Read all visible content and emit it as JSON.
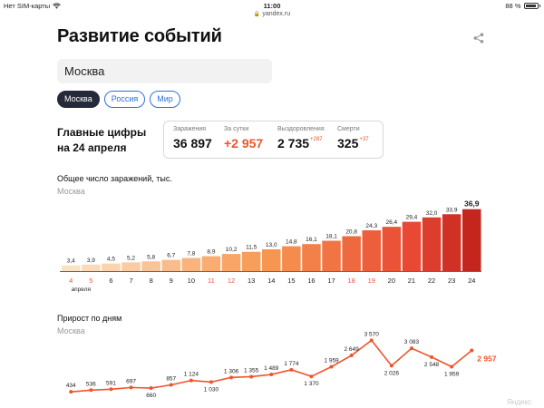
{
  "status_bar": {
    "carrier": "Нет SIM-карты",
    "time": "11:00",
    "battery": "88 %"
  },
  "url": "yandex.ru",
  "page": {
    "title": "Развитие событий",
    "search_value": "Москва",
    "chips": [
      "Москва",
      "Россия",
      "Мир"
    ],
    "main_figures_title": "Главные цифры\nна 24 апреля"
  },
  "stats": [
    {
      "label": "Заражения",
      "value": "36 897",
      "delta": "",
      "highlight": false
    },
    {
      "label": "За сутки",
      "value": "+2 957",
      "delta": "",
      "highlight": true
    },
    {
      "label": "Выздоровления",
      "value": "2 735",
      "delta": "+287",
      "highlight": false
    },
    {
      "label": "Смерти",
      "value": "325",
      "delta": "+37",
      "highlight": false
    }
  ],
  "colors": {
    "accent": "#f0542a",
    "link": "#2f6fe0",
    "chip_active": "#252a3a",
    "weekend": "#e8533a"
  },
  "chart_data": [
    {
      "type": "bar",
      "title": "Общее число заражений, тыс.",
      "subtitle": "Москва",
      "categories": [
        "4",
        "5",
        "6",
        "7",
        "8",
        "9",
        "10",
        "11",
        "12",
        "13",
        "14",
        "15",
        "16",
        "17",
        "18",
        "19",
        "20",
        "21",
        "22",
        "23",
        "24"
      ],
      "values": [
        3.4,
        3.9,
        4.5,
        5.2,
        5.8,
        6.7,
        7.8,
        8.9,
        10.2,
        11.5,
        13.0,
        14.8,
        16.1,
        18.1,
        20.8,
        24.3,
        26.4,
        29.4,
        32.0,
        33.9,
        36.9
      ],
      "value_labels": [
        "3,4",
        "3,9",
        "4,5",
        "5,2",
        "5,8",
        "6,7",
        "7,8",
        "8,9",
        "10,2",
        "11,5",
        "13,0",
        "14,8",
        "16,1",
        "18,1",
        "20,8",
        "24,3",
        "26,4",
        "29,4",
        "32,0",
        "33,9",
        "36,9"
      ],
      "weekend_categories": [
        "4",
        "5",
        "11",
        "12",
        "18",
        "19"
      ],
      "month_label": "апреля",
      "ylim": [
        0,
        40
      ]
    },
    {
      "type": "line",
      "title": "Прирост по дням",
      "subtitle": "Москва",
      "categories": [
        "4",
        "5",
        "6",
        "7",
        "8",
        "9",
        "10",
        "11",
        "12",
        "13",
        "14",
        "15",
        "16",
        "17",
        "18",
        "19",
        "20",
        "21",
        "22",
        "23",
        "24"
      ],
      "values": [
        434,
        536,
        591,
        697,
        660,
        857,
        1124,
        1030,
        1306,
        1355,
        1489,
        1774,
        1370,
        1959,
        2649,
        3570,
        2026,
        3083,
        2548,
        1959,
        2957
      ],
      "value_labels": [
        "434",
        "536",
        "591",
        "697",
        "660",
        "857",
        "1 124",
        "1 030",
        "1 306",
        "1 355",
        "1 489",
        "1 774",
        "1 370",
        "1 959",
        "2 649",
        "3 570",
        "2 026",
        "3 083",
        "2 548",
        "1 959",
        "2 957"
      ],
      "ylim": [
        0,
        3700
      ]
    }
  ],
  "watermark": "Яндекс"
}
